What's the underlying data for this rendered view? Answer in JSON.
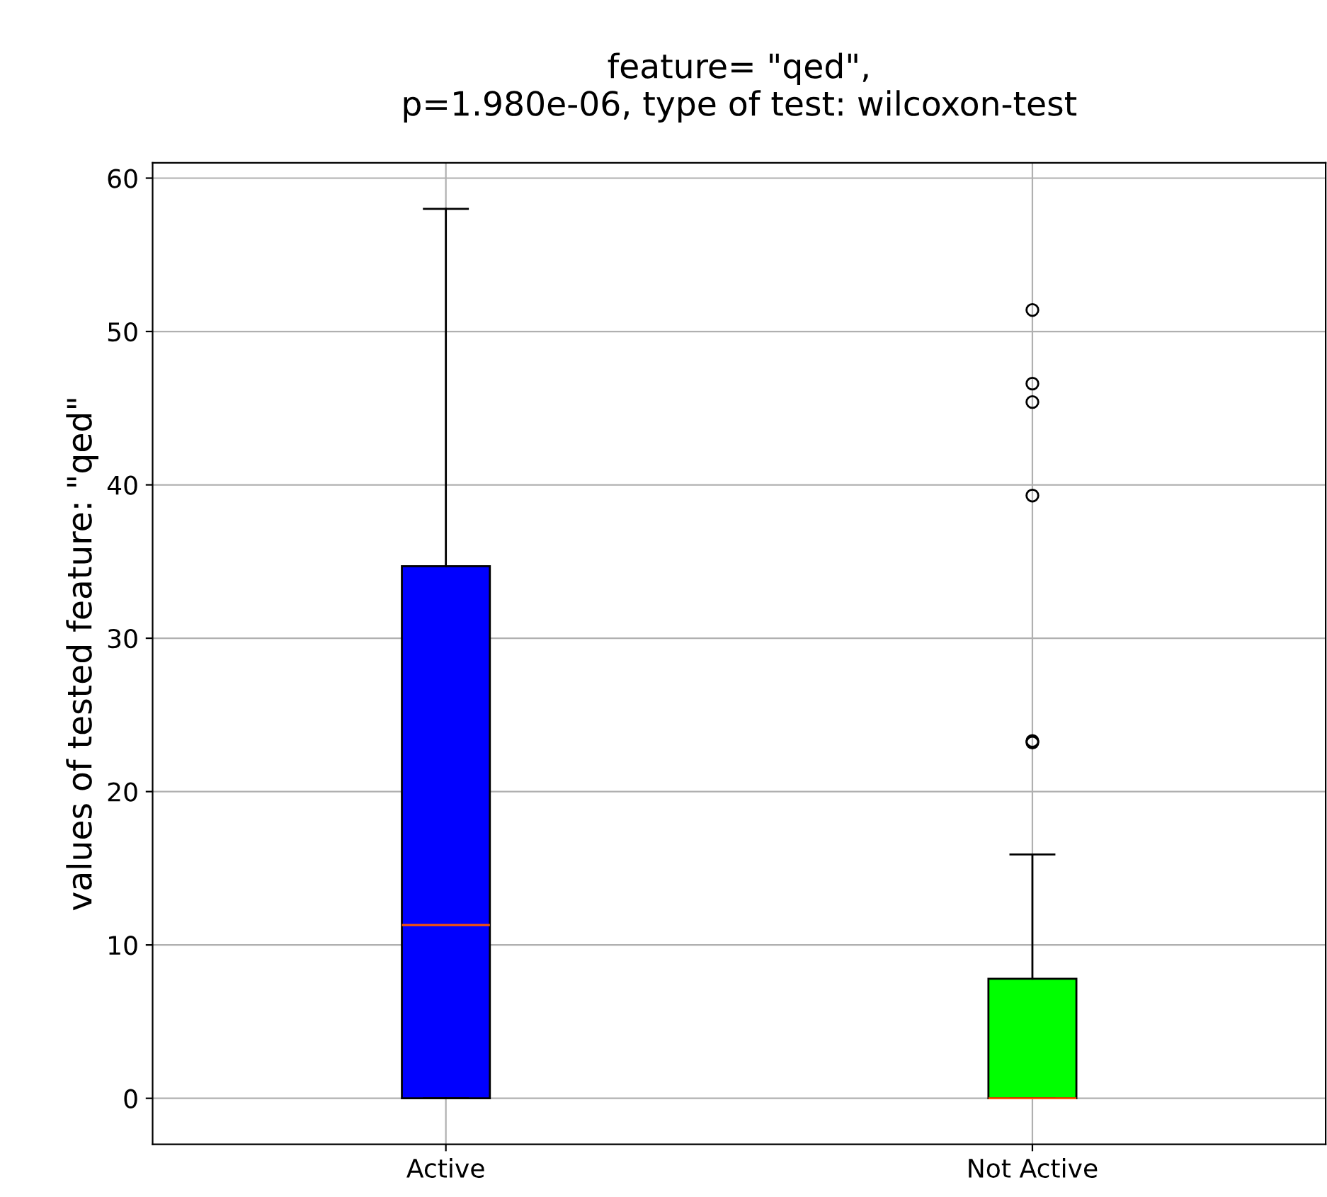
{
  "chart_data": {
    "type": "box",
    "title": "feature= \"qed\",\np=1.980e-06, type of test: wilcoxon-test",
    "ylabel": "values of tested feature: \"qed\"",
    "categories": [
      "Active",
      "Not Active"
    ],
    "boxes": [
      {
        "low": 0,
        "q1": 0,
        "median": 11.3,
        "q3": 34.7,
        "high": 58
      },
      {
        "low": 0,
        "q1": 0,
        "median": 0,
        "q3": 7.8,
        "high": 15.9,
        "outliers": [
          51.4,
          46.6,
          45.4,
          39.3,
          23.3,
          23.2
        ]
      }
    ],
    "colors": [
      "#0000ff",
      "#00ff00"
    ],
    "ylim": [
      -3,
      61
    ],
    "yticks": [
      0,
      10,
      20,
      30,
      40,
      50,
      60
    ],
    "grid": true
  }
}
